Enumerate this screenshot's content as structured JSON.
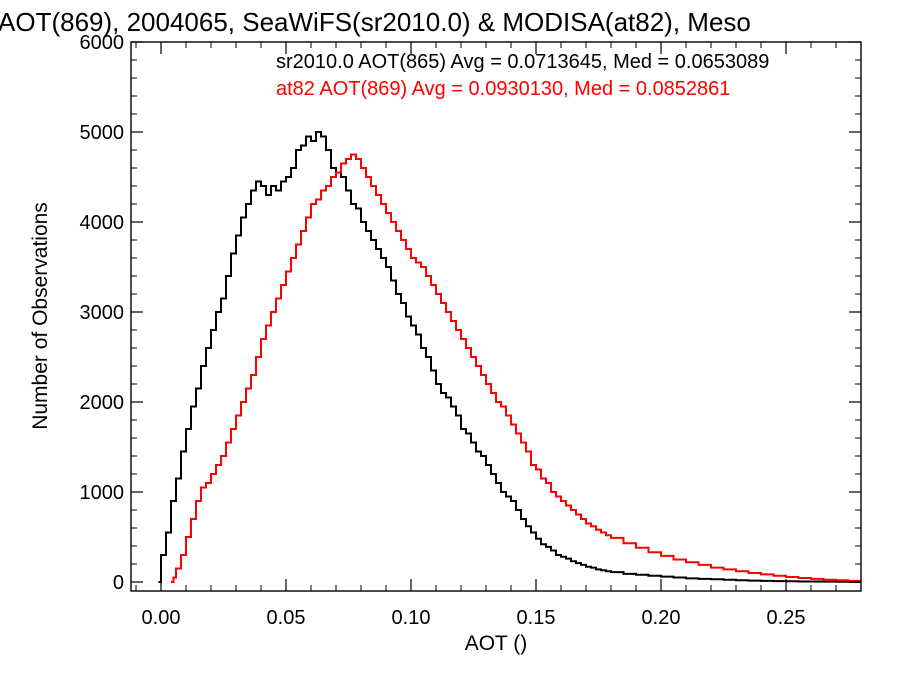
{
  "chart_data": {
    "type": "line",
    "title": "AOT(869), 2004065, SeaWiFS(sr2010.0) & MODISA(at82), Meso",
    "xlabel": "AOT ()",
    "ylabel": "Number of Observations",
    "xlim": [
      -0.012,
      0.28
    ],
    "ylim": [
      -100,
      6000
    ],
    "x_ticks": [
      0.0,
      0.05,
      0.1,
      0.15,
      0.2,
      0.25
    ],
    "x_tick_labels": [
      "0.00",
      "0.05",
      "0.10",
      "0.15",
      "0.20",
      "0.25"
    ],
    "y_ticks": [
      0,
      1000,
      2000,
      3000,
      4000,
      5000,
      6000
    ],
    "y_tick_labels": [
      "0",
      "1000",
      "2000",
      "3000",
      "4000",
      "5000",
      "6000"
    ],
    "grid": false,
    "legend_position": "top-right",
    "series": [
      {
        "name": "sr2010.0 AOT(865) Avg = 0.0713645, Med = 0.0653089",
        "color": "#000000",
        "style": "step",
        "points": [
          [
            -0.001,
            0
          ],
          [
            0.0,
            300
          ],
          [
            0.002,
            550
          ],
          [
            0.004,
            900
          ],
          [
            0.006,
            1150
          ],
          [
            0.008,
            1450
          ],
          [
            0.01,
            1700
          ],
          [
            0.012,
            1950
          ],
          [
            0.014,
            2150
          ],
          [
            0.016,
            2400
          ],
          [
            0.018,
            2600
          ],
          [
            0.02,
            2800
          ],
          [
            0.022,
            3000
          ],
          [
            0.024,
            3150
          ],
          [
            0.026,
            3400
          ],
          [
            0.028,
            3650
          ],
          [
            0.03,
            3850
          ],
          [
            0.032,
            4050
          ],
          [
            0.034,
            4200
          ],
          [
            0.036,
            4350
          ],
          [
            0.038,
            4450
          ],
          [
            0.04,
            4400
          ],
          [
            0.042,
            4300
          ],
          [
            0.044,
            4400
          ],
          [
            0.046,
            4350
          ],
          [
            0.048,
            4450
          ],
          [
            0.05,
            4500
          ],
          [
            0.052,
            4600
          ],
          [
            0.054,
            4800
          ],
          [
            0.056,
            4850
          ],
          [
            0.058,
            4950
          ],
          [
            0.06,
            4900
          ],
          [
            0.062,
            5000
          ],
          [
            0.064,
            4950
          ],
          [
            0.066,
            4800
          ],
          [
            0.068,
            4600
          ],
          [
            0.07,
            4550
          ],
          [
            0.072,
            4500
          ],
          [
            0.074,
            4350
          ],
          [
            0.076,
            4200
          ],
          [
            0.078,
            4150
          ],
          [
            0.08,
            4000
          ],
          [
            0.082,
            3900
          ],
          [
            0.084,
            3800
          ],
          [
            0.086,
            3700
          ],
          [
            0.088,
            3600
          ],
          [
            0.09,
            3500
          ],
          [
            0.092,
            3350
          ],
          [
            0.094,
            3200
          ],
          [
            0.096,
            3100
          ],
          [
            0.098,
            2950
          ],
          [
            0.1,
            2850
          ],
          [
            0.102,
            2750
          ],
          [
            0.104,
            2600
          ],
          [
            0.106,
            2500
          ],
          [
            0.108,
            2350
          ],
          [
            0.11,
            2200
          ],
          [
            0.112,
            2100
          ],
          [
            0.114,
            2050
          ],
          [
            0.116,
            1950
          ],
          [
            0.118,
            1850
          ],
          [
            0.12,
            1700
          ],
          [
            0.122,
            1650
          ],
          [
            0.124,
            1550
          ],
          [
            0.126,
            1450
          ],
          [
            0.128,
            1400
          ],
          [
            0.13,
            1300
          ],
          [
            0.132,
            1200
          ],
          [
            0.134,
            1100
          ],
          [
            0.136,
            1000
          ],
          [
            0.138,
            950
          ],
          [
            0.14,
            900
          ],
          [
            0.142,
            800
          ],
          [
            0.144,
            700
          ],
          [
            0.146,
            620
          ],
          [
            0.148,
            550
          ],
          [
            0.15,
            480
          ],
          [
            0.152,
            420
          ],
          [
            0.154,
            390
          ],
          [
            0.156,
            350
          ],
          [
            0.158,
            300
          ],
          [
            0.16,
            280
          ],
          [
            0.162,
            260
          ],
          [
            0.164,
            230
          ],
          [
            0.166,
            210
          ],
          [
            0.168,
            190
          ],
          [
            0.17,
            170
          ],
          [
            0.172,
            160
          ],
          [
            0.174,
            140
          ],
          [
            0.176,
            130
          ],
          [
            0.178,
            120
          ],
          [
            0.18,
            110
          ],
          [
            0.185,
            90
          ],
          [
            0.19,
            80
          ],
          [
            0.195,
            70
          ],
          [
            0.2,
            60
          ],
          [
            0.205,
            50
          ],
          [
            0.21,
            40
          ],
          [
            0.215,
            35
          ],
          [
            0.22,
            30
          ],
          [
            0.225,
            25
          ],
          [
            0.23,
            20
          ],
          [
            0.235,
            15
          ],
          [
            0.24,
            12
          ],
          [
            0.245,
            10
          ],
          [
            0.25,
            8
          ],
          [
            0.255,
            6
          ],
          [
            0.26,
            5
          ],
          [
            0.265,
            4
          ],
          [
            0.27,
            3
          ],
          [
            0.275,
            2
          ],
          [
            0.28,
            2
          ]
        ]
      },
      {
        "name": "at82 AOT(869) Avg = 0.0930130, Med = 0.0852861",
        "color": "#ff0000",
        "style": "step",
        "points": [
          [
            0.004,
            0
          ],
          [
            0.005,
            50
          ],
          [
            0.006,
            150
          ],
          [
            0.008,
            300
          ],
          [
            0.01,
            500
          ],
          [
            0.012,
            700
          ],
          [
            0.014,
            900
          ],
          [
            0.016,
            1050
          ],
          [
            0.018,
            1100
          ],
          [
            0.02,
            1200
          ],
          [
            0.022,
            1300
          ],
          [
            0.024,
            1400
          ],
          [
            0.026,
            1550
          ],
          [
            0.028,
            1700
          ],
          [
            0.03,
            1850
          ],
          [
            0.032,
            2000
          ],
          [
            0.034,
            2150
          ],
          [
            0.036,
            2300
          ],
          [
            0.038,
            2500
          ],
          [
            0.04,
            2700
          ],
          [
            0.042,
            2850
          ],
          [
            0.044,
            3000
          ],
          [
            0.046,
            3150
          ],
          [
            0.048,
            3300
          ],
          [
            0.05,
            3450
          ],
          [
            0.052,
            3600
          ],
          [
            0.054,
            3750
          ],
          [
            0.056,
            3900
          ],
          [
            0.058,
            4050
          ],
          [
            0.06,
            4200
          ],
          [
            0.062,
            4250
          ],
          [
            0.064,
            4350
          ],
          [
            0.066,
            4400
          ],
          [
            0.068,
            4500
          ],
          [
            0.07,
            4550
          ],
          [
            0.072,
            4650
          ],
          [
            0.074,
            4700
          ],
          [
            0.076,
            4750
          ],
          [
            0.078,
            4700
          ],
          [
            0.08,
            4600
          ],
          [
            0.082,
            4500
          ],
          [
            0.084,
            4400
          ],
          [
            0.086,
            4300
          ],
          [
            0.088,
            4200
          ],
          [
            0.09,
            4100
          ],
          [
            0.092,
            4000
          ],
          [
            0.094,
            3900
          ],
          [
            0.096,
            3800
          ],
          [
            0.098,
            3700
          ],
          [
            0.1,
            3600
          ],
          [
            0.102,
            3550
          ],
          [
            0.104,
            3500
          ],
          [
            0.106,
            3400
          ],
          [
            0.108,
            3300
          ],
          [
            0.11,
            3200
          ],
          [
            0.112,
            3100
          ],
          [
            0.114,
            3000
          ],
          [
            0.116,
            2900
          ],
          [
            0.118,
            2800
          ],
          [
            0.12,
            2700
          ],
          [
            0.122,
            2600
          ],
          [
            0.124,
            2500
          ],
          [
            0.126,
            2400
          ],
          [
            0.128,
            2300
          ],
          [
            0.13,
            2200
          ],
          [
            0.132,
            2100
          ],
          [
            0.134,
            2000
          ],
          [
            0.136,
            1950
          ],
          [
            0.138,
            1850
          ],
          [
            0.14,
            1750
          ],
          [
            0.142,
            1650
          ],
          [
            0.144,
            1550
          ],
          [
            0.146,
            1450
          ],
          [
            0.148,
            1300
          ],
          [
            0.15,
            1250
          ],
          [
            0.152,
            1150
          ],
          [
            0.154,
            1100
          ],
          [
            0.156,
            1000
          ],
          [
            0.158,
            950
          ],
          [
            0.16,
            900
          ],
          [
            0.162,
            850
          ],
          [
            0.164,
            800
          ],
          [
            0.166,
            750
          ],
          [
            0.168,
            700
          ],
          [
            0.17,
            650
          ],
          [
            0.172,
            620
          ],
          [
            0.174,
            580
          ],
          [
            0.176,
            550
          ],
          [
            0.178,
            520
          ],
          [
            0.18,
            490
          ],
          [
            0.185,
            430
          ],
          [
            0.19,
            380
          ],
          [
            0.195,
            330
          ],
          [
            0.2,
            290
          ],
          [
            0.205,
            250
          ],
          [
            0.21,
            220
          ],
          [
            0.215,
            190
          ],
          [
            0.22,
            160
          ],
          [
            0.225,
            140
          ],
          [
            0.23,
            120
          ],
          [
            0.235,
            100
          ],
          [
            0.24,
            85
          ],
          [
            0.245,
            70
          ],
          [
            0.25,
            55
          ],
          [
            0.255,
            45
          ],
          [
            0.26,
            35
          ],
          [
            0.265,
            25
          ],
          [
            0.27,
            20
          ],
          [
            0.275,
            12
          ],
          [
            0.28,
            8
          ]
        ]
      }
    ]
  }
}
